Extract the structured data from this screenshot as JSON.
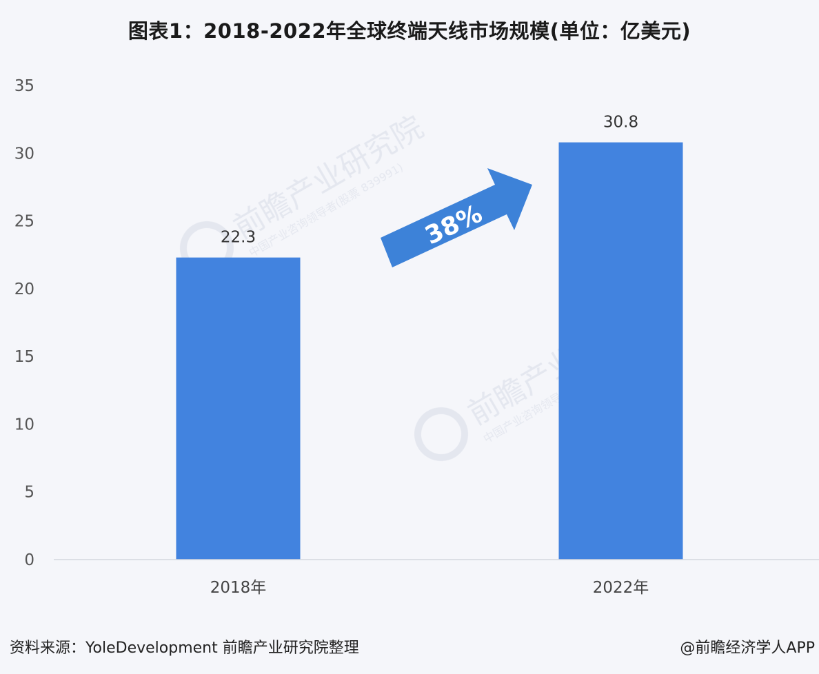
{
  "title": "图表1：2018-2022年全球终端天线市场规模(单位：亿美元)",
  "chart_data": {
    "type": "bar",
    "title": "图表1：2018-2022年全球终端天线市场规模(单位：亿美元)",
    "categories": [
      "2018年",
      "2022年"
    ],
    "values": [
      22.3,
      30.8
    ],
    "data_labels": [
      "22.3",
      "30.8"
    ],
    "ylim": [
      0,
      35
    ],
    "yticks": [
      0,
      5,
      10,
      15,
      20,
      25,
      30,
      35
    ],
    "bar_color": "#4283df",
    "grid": false,
    "legend": "none",
    "annotation": "38%"
  },
  "watermark": {
    "text": "前瞻产业研究院",
    "sub": "中国产业咨询领导者(股票 839991)"
  },
  "footer": {
    "source": "资料来源：YoleDevelopment 前瞻产业研究院整理",
    "brand": "@前瞻经济学人APP"
  }
}
